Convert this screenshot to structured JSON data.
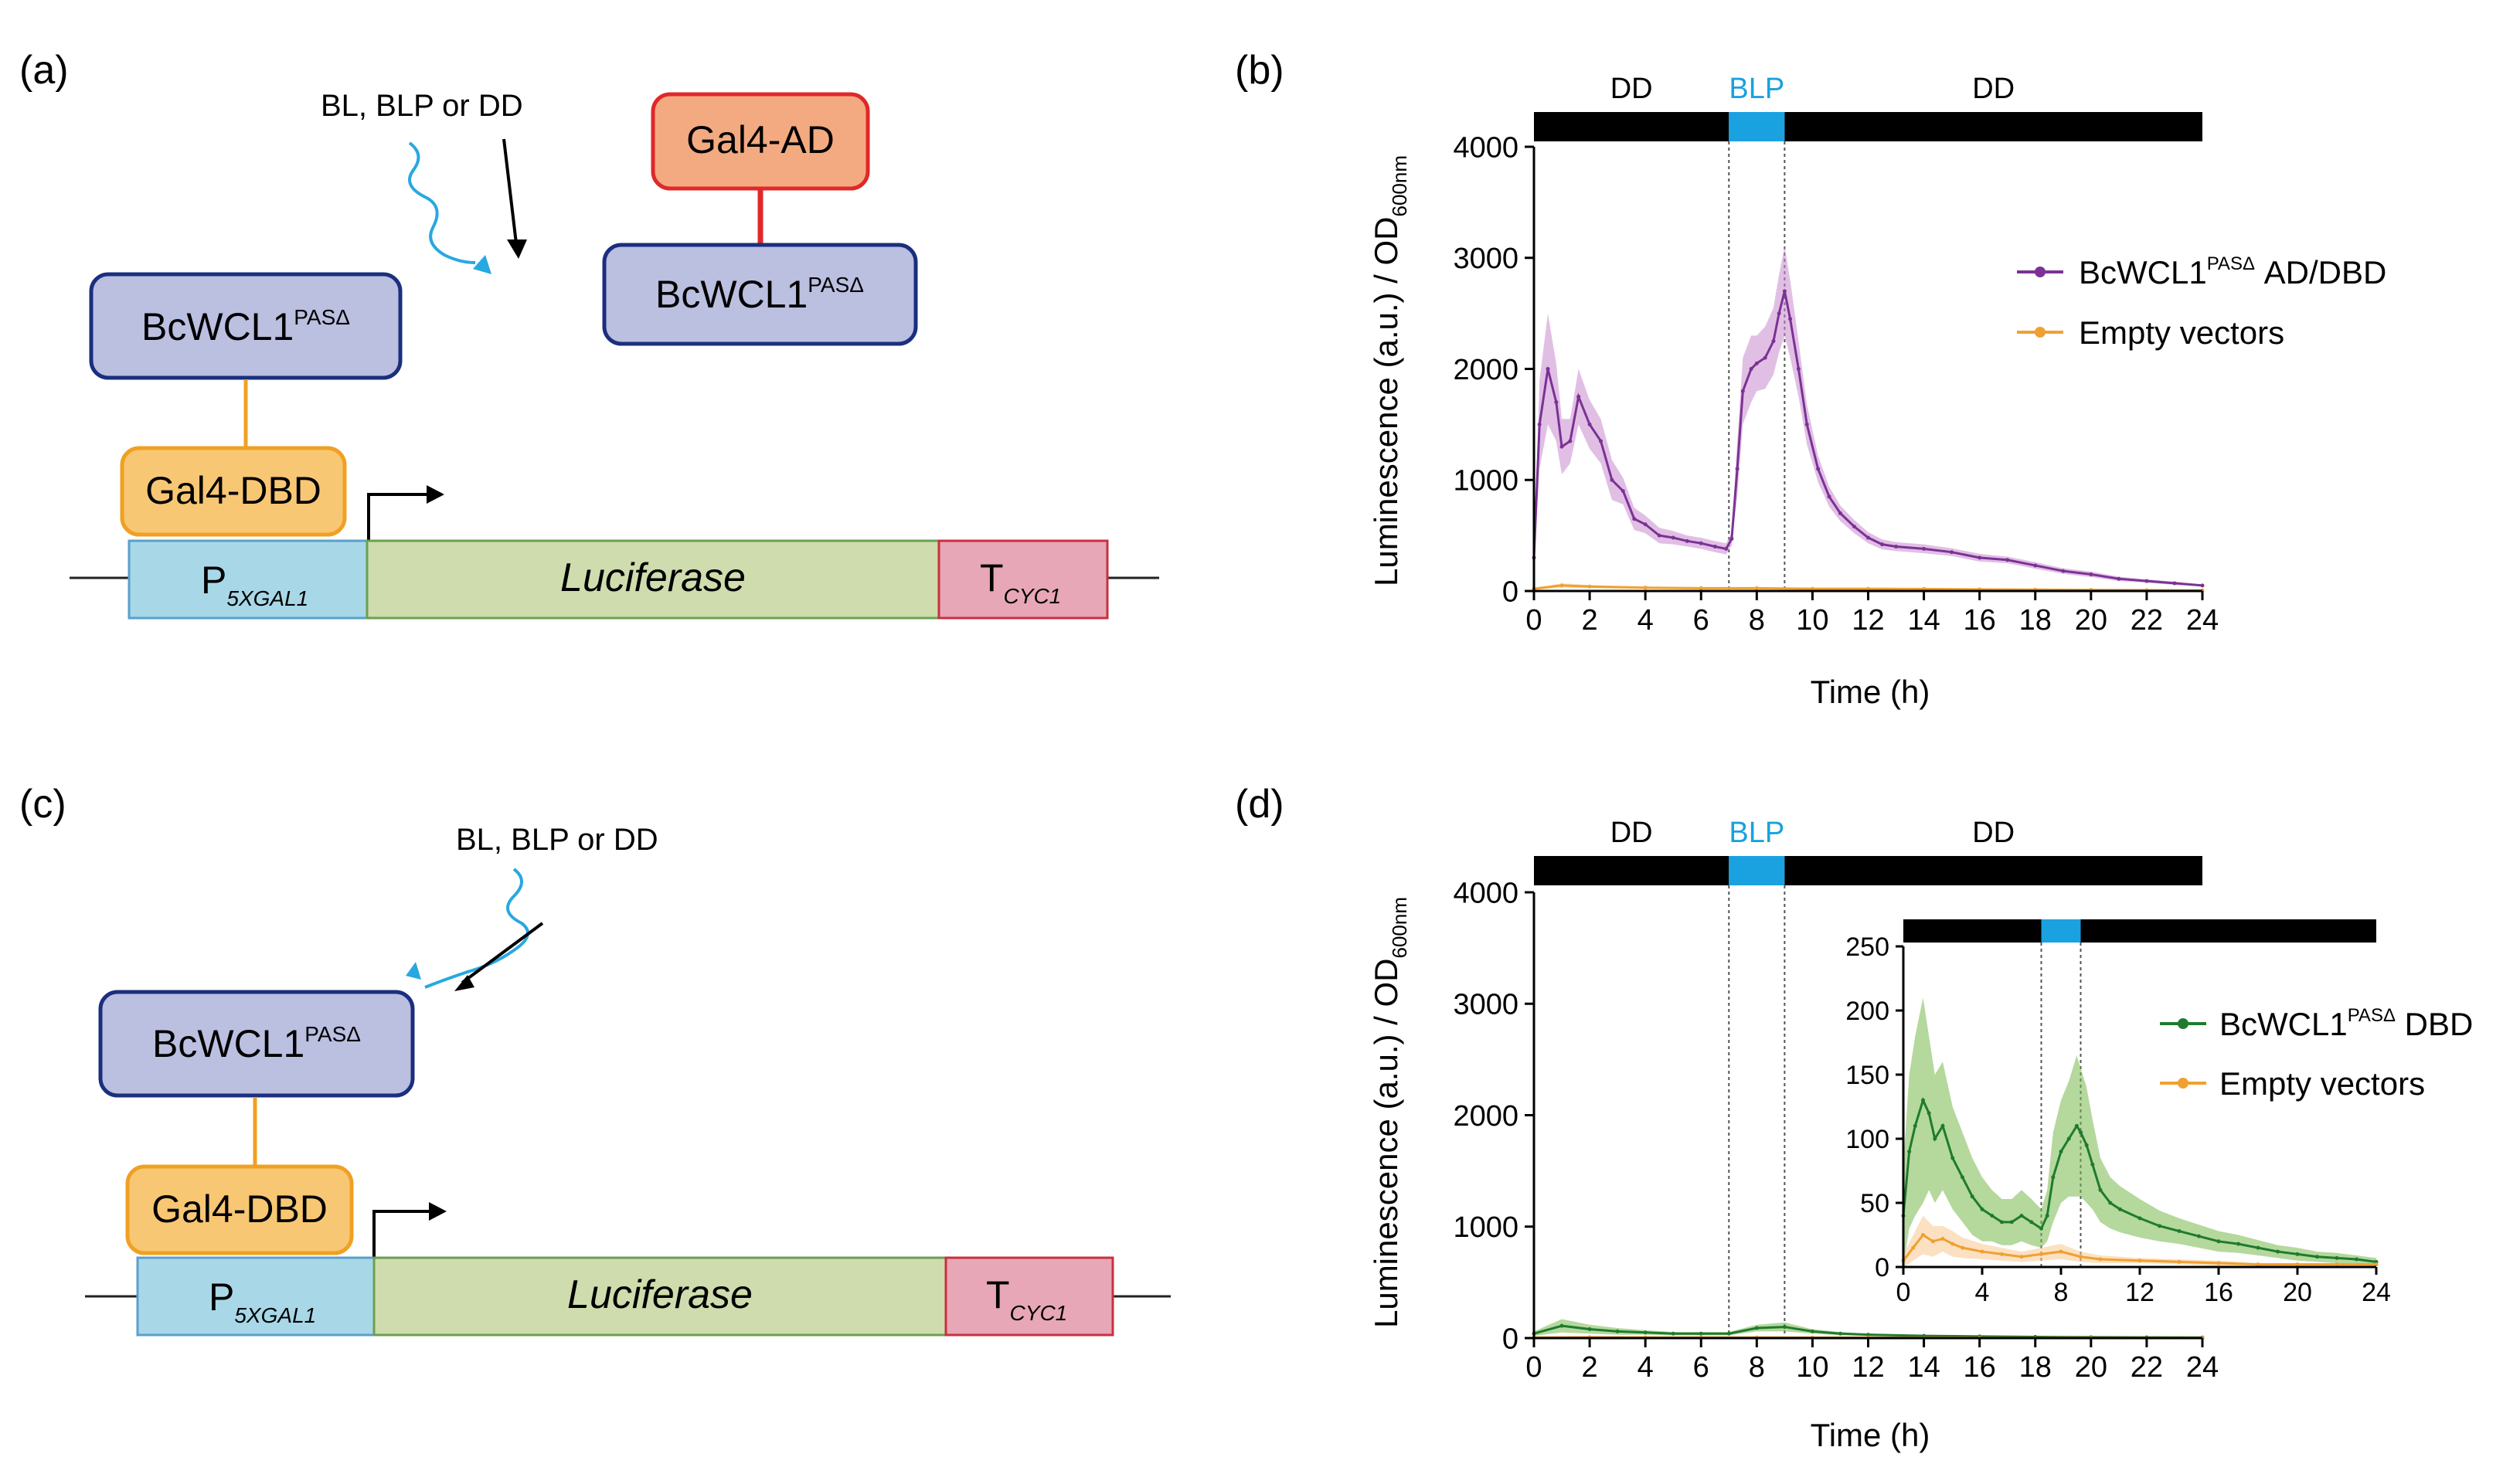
{
  "panels": {
    "a": {
      "label": "(a)",
      "light_label": "BL, BLP or DD",
      "ad_box": "Gal4-AD",
      "wcl_top": {
        "base": "BcWCL1",
        "sup": "PASΔ"
      },
      "wcl_left": {
        "base": "BcWCL1",
        "sup": "PASΔ"
      },
      "dbd_box": "Gal4-DBD",
      "promoter": {
        "base": "P",
        "sub": "5XGAL1"
      },
      "gene": "Luciferase",
      "terminator": {
        "base": "T",
        "sub": "CYC1"
      }
    },
    "c": {
      "label": "(c)",
      "light_label": "BL, BLP or DD",
      "wcl": {
        "base": "BcWCL1",
        "sup": "PASΔ"
      },
      "dbd_box": "Gal4-DBD",
      "promoter": {
        "base": "P",
        "sub": "5XGAL1"
      },
      "gene": "Luciferase",
      "terminator": {
        "base": "T",
        "sub": "CYC1"
      }
    }
  },
  "colors": {
    "blue_box": "#bbbfe0",
    "blue_border": "#1b2f7e",
    "orange_box": "#f8c774",
    "orange_border": "#f0a023",
    "ad_box": "#f3aa80",
    "ad_border": "#e0282a",
    "promoter": "#a8d8e8",
    "promoter_border": "#5aa0c8",
    "gene": "#cfdcae",
    "gene_border": "#6aa050",
    "terminator": "#e7a7b7",
    "terminator_border": "#c83040",
    "light_blue": "#28a8e0",
    "purple": "#7b3294",
    "purple_band": "#c98bd0",
    "green": "#1e7b2e",
    "green_band": "#78b84c",
    "orange": "#f0a030"
  },
  "chart_data": [
    {
      "id": "b",
      "panel_label": "(b)",
      "type": "line",
      "xlabel": "Time (h)",
      "ylabel": "Luminescence (a.u.) / OD",
      "ylabel_sub": "600nm",
      "xlim": [
        0,
        24
      ],
      "ylim": [
        0,
        4000
      ],
      "xticks": [
        0,
        2,
        4,
        6,
        8,
        10,
        12,
        14,
        16,
        18,
        20,
        22,
        24
      ],
      "yticks": [
        0,
        1000,
        2000,
        3000,
        4000
      ],
      "light_bar": [
        {
          "label": "DD",
          "from": 0,
          "to": 7,
          "color": "#000000"
        },
        {
          "label": "BLP",
          "from": 7,
          "to": 9,
          "color": "#1aa1e0"
        },
        {
          "label": "DD",
          "from": 9,
          "to": 24,
          "color": "#000000"
        }
      ],
      "vlines": [
        7,
        9
      ],
      "legend": [
        {
          "name": "BcWCL1",
          "sup": "PASΔ",
          "suffix": " AD/DBD",
          "color": "#7b3294"
        },
        {
          "name": "Empty vectors",
          "sup": "",
          "suffix": "",
          "color": "#f0a030"
        }
      ],
      "series": [
        {
          "name": "BcWCL1 PASΔ AD/DBD",
          "color": "#7b3294",
          "band": "#c98bd0",
          "x": [
            0,
            0.2,
            0.5,
            0.8,
            1.0,
            1.3,
            1.6,
            2.0,
            2.4,
            2.8,
            3.2,
            3.6,
            4.0,
            4.5,
            5.0,
            5.5,
            6.0,
            6.5,
            6.9,
            7.1,
            7.3,
            7.5,
            7.8,
            8.0,
            8.3,
            8.6,
            8.8,
            9.0,
            9.2,
            9.5,
            9.8,
            10.2,
            10.6,
            11.0,
            11.5,
            12.0,
            12.5,
            13.0,
            14.0,
            15.0,
            16.0,
            17.0,
            18.0,
            19.0,
            20.0,
            21.0,
            22.0,
            23.0,
            24.0
          ],
          "values": [
            300,
            1500,
            2000,
            1700,
            1300,
            1350,
            1750,
            1500,
            1350,
            1000,
            900,
            650,
            600,
            500,
            480,
            450,
            430,
            400,
            380,
            470,
            1100,
            1800,
            2000,
            2050,
            2100,
            2250,
            2500,
            2700,
            2450,
            2000,
            1500,
            1100,
            850,
            700,
            580,
            480,
            420,
            400,
            380,
            350,
            300,
            280,
            230,
            180,
            150,
            110,
            90,
            70,
            50
          ],
          "band_width": [
            20,
            400,
            500,
            350,
            250,
            200,
            250,
            220,
            200,
            180,
            120,
            100,
            80,
            70,
            60,
            50,
            50,
            50,
            50,
            60,
            250,
            300,
            300,
            250,
            280,
            300,
            350,
            400,
            350,
            250,
            180,
            120,
            90,
            70,
            60,
            50,
            45,
            40,
            40,
            35,
            35,
            30,
            30,
            25,
            25,
            20,
            15,
            15,
            10
          ]
        },
        {
          "name": "Empty vectors",
          "color": "#f0a030",
          "band": "#f8c890",
          "x": [
            0,
            1,
            2,
            4,
            6,
            8,
            10,
            12,
            14,
            16,
            18,
            20,
            22,
            24
          ],
          "values": [
            20,
            50,
            40,
            30,
            25,
            25,
            20,
            20,
            18,
            15,
            12,
            10,
            8,
            5
          ],
          "band_width": [
            5,
            20,
            15,
            10,
            8,
            8,
            6,
            6,
            5,
            5,
            4,
            4,
            3,
            3
          ]
        }
      ]
    },
    {
      "id": "d",
      "panel_label": "(d)",
      "type": "line",
      "xlabel": "Time (h)",
      "ylabel": "Luminescence (a.u.) / OD",
      "ylabel_sub": "600nm",
      "xlim": [
        0,
        24
      ],
      "ylim": [
        0,
        4000
      ],
      "xticks": [
        0,
        2,
        4,
        6,
        8,
        10,
        12,
        14,
        16,
        18,
        20,
        22,
        24
      ],
      "yticks": [
        0,
        1000,
        2000,
        3000,
        4000
      ],
      "light_bar": [
        {
          "label": "DD",
          "from": 0,
          "to": 7,
          "color": "#000000"
        },
        {
          "label": "BLP",
          "from": 7,
          "to": 9,
          "color": "#1aa1e0"
        },
        {
          "label": "DD",
          "from": 9,
          "to": 24,
          "color": "#000000"
        }
      ],
      "vlines": [
        7,
        9
      ],
      "legend": [
        {
          "name": "BcWCL1",
          "sup": "PASΔ",
          "suffix": " DBD",
          "color": "#1e7b2e"
        },
        {
          "name": "Empty vectors",
          "sup": "",
          "suffix": "",
          "color": "#f0a030"
        }
      ],
      "series": [
        {
          "name": "BcWCL1 PASΔ DBD",
          "color": "#1e7b2e",
          "band": "#78b84c",
          "x": [
            0,
            1,
            2,
            3,
            4,
            5,
            6,
            7,
            8,
            9,
            10,
            11,
            12,
            14,
            16,
            18,
            20,
            22,
            24
          ],
          "values": [
            40,
            110,
            80,
            60,
            50,
            40,
            40,
            40,
            90,
            100,
            60,
            40,
            30,
            20,
            15,
            10,
            8,
            6,
            5
          ],
          "band_width": [
            20,
            60,
            40,
            30,
            20,
            15,
            15,
            15,
            30,
            40,
            20,
            15,
            10,
            8,
            6,
            5,
            4,
            3,
            3
          ]
        },
        {
          "name": "Empty vectors",
          "color": "#f0a030",
          "band": "#f8c890",
          "x": [
            0,
            2,
            4,
            6,
            8,
            10,
            12,
            16,
            20,
            24
          ],
          "values": [
            5,
            8,
            6,
            5,
            5,
            4,
            4,
            3,
            2,
            2
          ],
          "band_width": [
            2,
            3,
            3,
            2,
            2,
            2,
            2,
            1,
            1,
            1
          ]
        }
      ],
      "inset": {
        "xlim": [
          0,
          24
        ],
        "ylim": [
          0,
          250
        ],
        "xticks": [
          0,
          4,
          8,
          12,
          16,
          20,
          24
        ],
        "yticks": [
          0,
          50,
          100,
          150,
          200,
          250
        ],
        "light_bar": [
          {
            "from": 0,
            "to": 7,
            "color": "#000000"
          },
          {
            "from": 7,
            "to": 9,
            "color": "#1aa1e0"
          },
          {
            "from": 9,
            "to": 24,
            "color": "#000000"
          }
        ],
        "vlines": [
          7,
          9
        ],
        "series": [
          {
            "name": "BcWCL1 PASΔ DBD",
            "color": "#1e7b2e",
            "band": "#78b84c",
            "x": [
              0,
              0.3,
              0.6,
              1.0,
              1.3,
              1.6,
              2.0,
              2.5,
              3.0,
              3.5,
              4.0,
              4.5,
              5.0,
              5.5,
              6.0,
              6.5,
              7.0,
              7.3,
              7.6,
              8.0,
              8.4,
              8.8,
              9.0,
              9.3,
              9.6,
              10.0,
              10.5,
              11.0,
              12.0,
              13.0,
              14.0,
              15.0,
              16.0,
              17.0,
              18.0,
              19.0,
              20.0,
              21.0,
              22.0,
              23.0,
              24.0
            ],
            "values": [
              40,
              90,
              110,
              130,
              120,
              100,
              110,
              85,
              70,
              55,
              45,
              40,
              35,
              35,
              40,
              35,
              30,
              40,
              70,
              90,
              100,
              110,
              105,
              95,
              80,
              60,
              50,
              45,
              38,
              32,
              28,
              24,
              20,
              18,
              15,
              12,
              10,
              8,
              7,
              6,
              4
            ],
            "band_width": [
              40,
              60,
              70,
              80,
              60,
              50,
              50,
              40,
              35,
              30,
              25,
              20,
              18,
              18,
              20,
              18,
              15,
              20,
              35,
              40,
              45,
              55,
              50,
              45,
              35,
              25,
              20,
              18,
              15,
              12,
              10,
              9,
              8,
              7,
              6,
              5,
              5,
              4,
              4,
              3,
              3
            ]
          },
          {
            "name": "Empty vectors",
            "color": "#f0a030",
            "band": "#f8c890",
            "x": [
              0,
              0.5,
              1.0,
              1.5,
              2.0,
              2.5,
              3.0,
              4.0,
              5.0,
              6.0,
              7.0,
              8.0,
              9.0,
              10.0,
              12.0,
              14.0,
              16.0,
              18.0,
              20.0,
              22.0,
              24.0
            ],
            "values": [
              5,
              15,
              25,
              20,
              22,
              18,
              15,
              12,
              10,
              8,
              10,
              12,
              8,
              6,
              5,
              4,
              3,
              2,
              2,
              2,
              2
            ],
            "band_width": [
              5,
              10,
              15,
              12,
              10,
              10,
              8,
              6,
              5,
              4,
              5,
              6,
              4,
              3,
              2,
              2,
              2,
              1,
              1,
              1,
              1
            ]
          }
        ]
      }
    }
  ]
}
